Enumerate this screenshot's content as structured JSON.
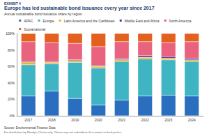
{
  "chart_data": {
    "type": "bar",
    "exhibit": "EXHIBIT 4",
    "title": "Europe has led sustainable bond issuance every year since 2017",
    "subtitle": "Annual sustainable bond issuance share by region",
    "source": "Source: Environmental Finance Data",
    "note": "For distribution by Moody's Clients only. Clients may not redistribute this content to third parties.",
    "categories": [
      "2017",
      "2018",
      "2019",
      "2020",
      "2021",
      "2022",
      "2023",
      "2024"
    ],
    "series": [
      {
        "name": "APAC",
        "color": "#2a6ebf",
        "values": [
          24,
          30,
          21,
          13,
          19,
          24,
          25,
          24
        ]
      },
      {
        "name": "Europe",
        "color": "#3fb5c4",
        "values": [
          38,
          33,
          44,
          45,
          47,
          45,
          43,
          42
        ]
      },
      {
        "name": "Latin America and the Caribbean",
        "color": "#e8b422",
        "values": [
          3,
          2,
          2,
          2,
          2,
          2,
          2,
          2
        ]
      },
      {
        "name": "Middle East and Africa",
        "color": "#6b2d8f",
        "values": [
          1,
          1,
          1,
          1,
          1,
          2,
          2,
          2
        ]
      },
      {
        "name": "North America",
        "color": "#e9637f",
        "values": [
          24,
          23,
          20,
          23,
          21,
          17,
          17,
          20
        ]
      },
      {
        "name": "Supranational",
        "color": "#e4601f",
        "values": [
          10,
          11,
          12,
          16,
          10,
          10,
          11,
          10
        ]
      }
    ],
    "ylim": [
      0,
      100
    ],
    "yticks": [
      {
        "value": 0,
        "label": "0%"
      },
      {
        "value": 20,
        "label": "20%"
      },
      {
        "value": 40,
        "label": "40%"
      },
      {
        "value": 60,
        "label": "60%"
      },
      {
        "value": 80,
        "label": "80%"
      },
      {
        "value": 100,
        "label": "100%"
      }
    ],
    "stacked": true,
    "legend": "top",
    "grid": false
  }
}
